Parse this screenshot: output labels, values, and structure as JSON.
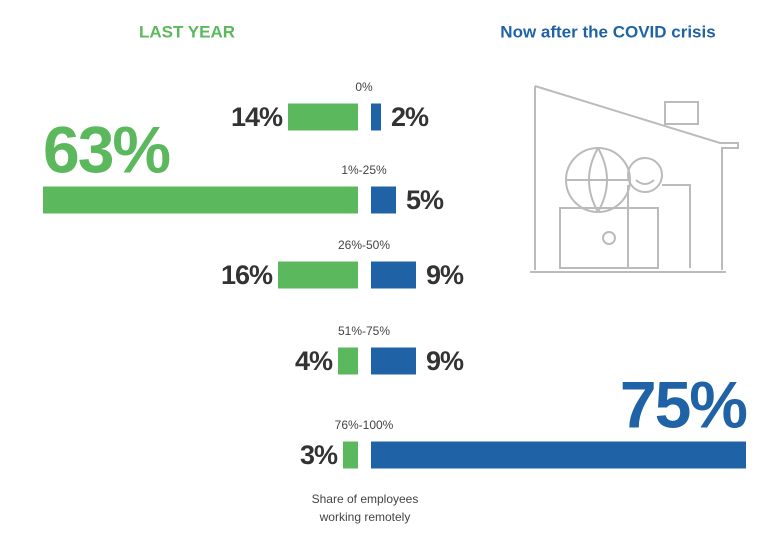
{
  "chart_data": {
    "type": "diverging-bar",
    "categories": [
      "0%",
      "1%-25%",
      "26%-50%",
      "51%-75%",
      "76%-100%"
    ],
    "series": [
      {
        "name": "LAST YEAR",
        "color": "#5cb85c",
        "values": [
          14,
          63,
          16,
          4,
          3
        ],
        "value_labels": [
          "14%",
          "63%",
          "16%",
          "4%",
          "3%"
        ]
      },
      {
        "name": "Now after the COVID crisis",
        "color": "#1f63a6",
        "values": [
          2,
          5,
          9,
          9,
          75
        ],
        "value_labels": [
          "2%",
          "5%",
          "9%",
          "9%",
          "75%"
        ]
      }
    ],
    "x_label": [
      "Share of employees",
      "working remotely"
    ]
  }
}
